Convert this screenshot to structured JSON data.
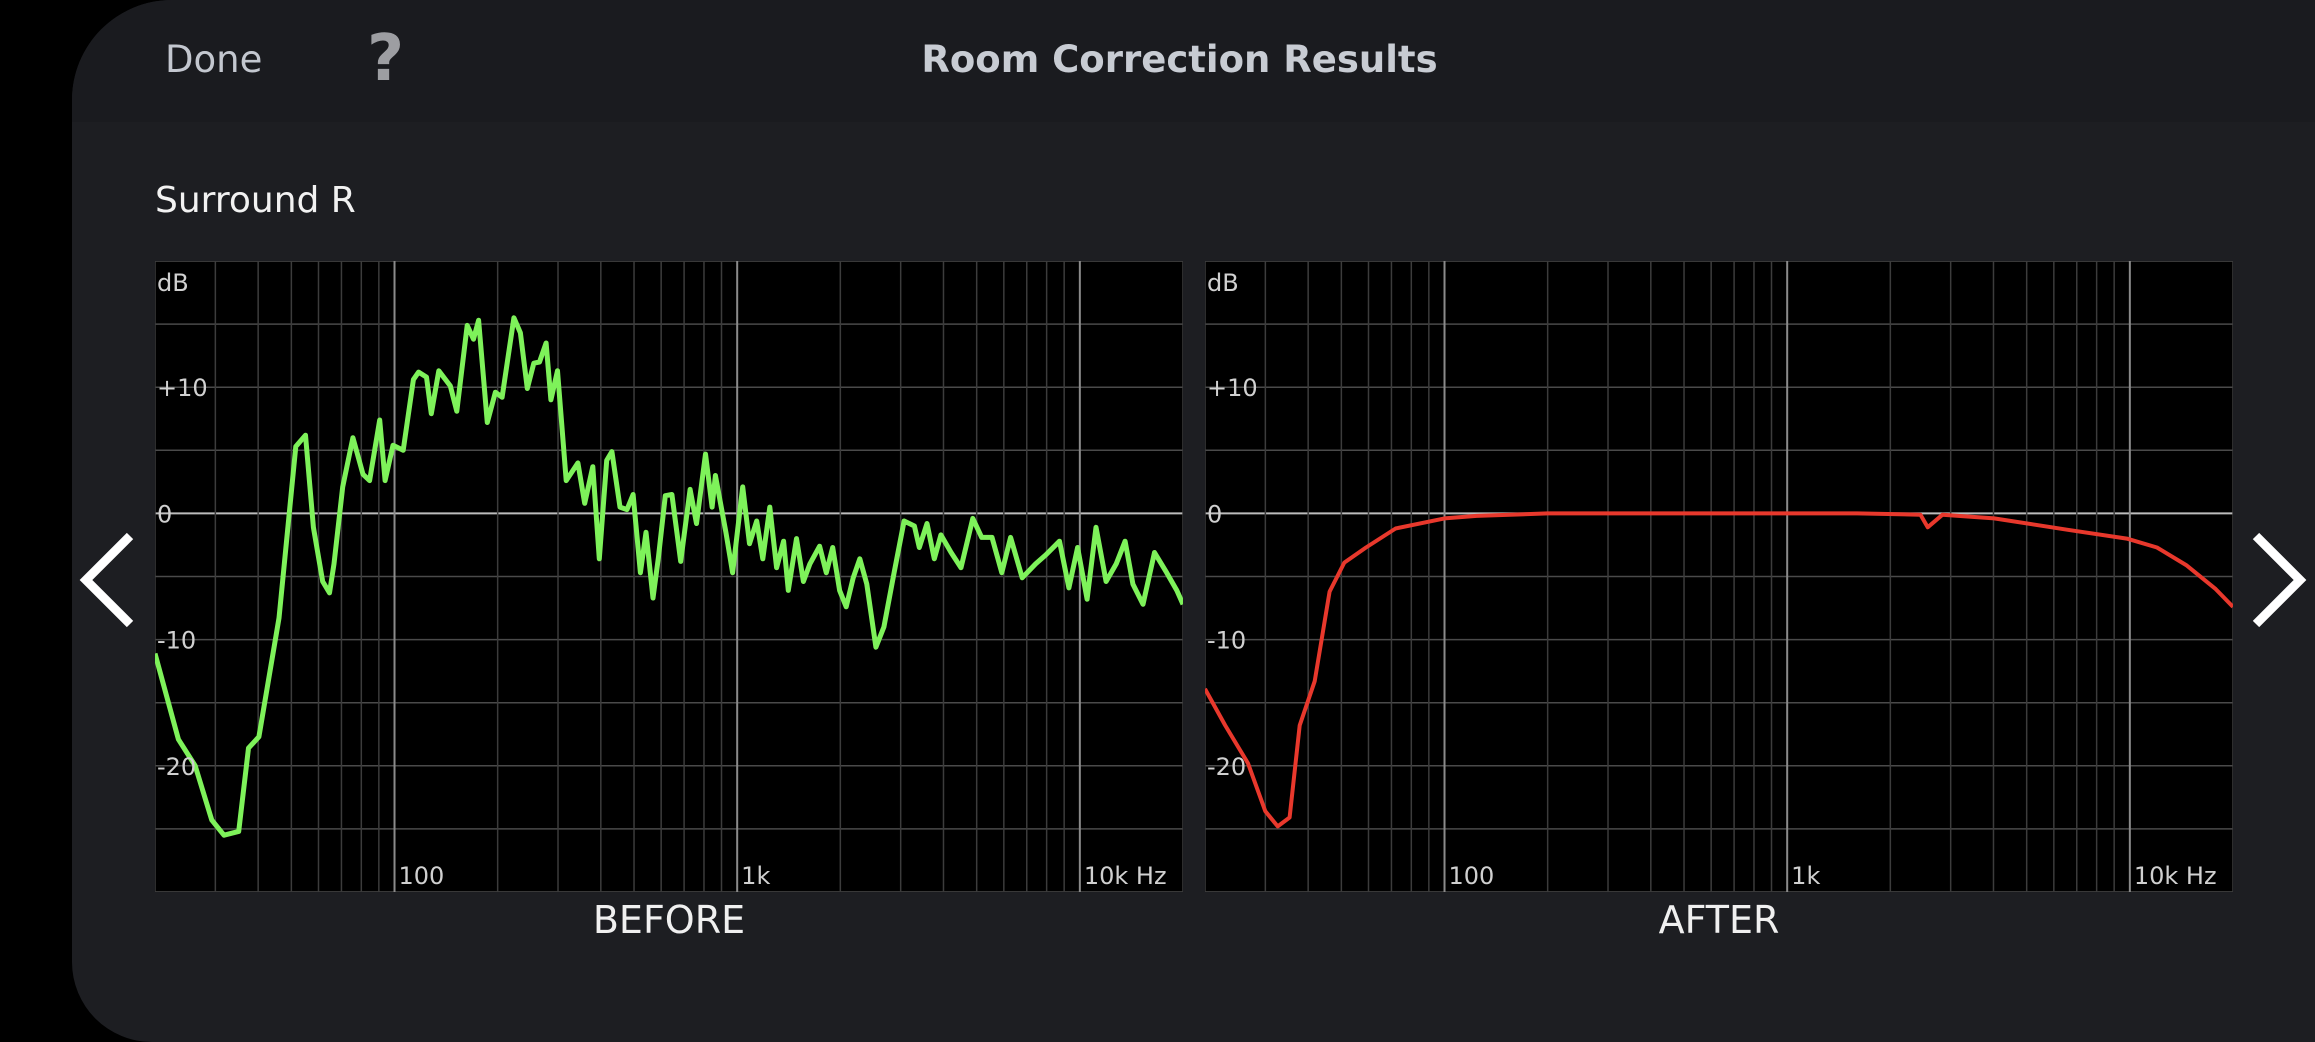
{
  "header": {
    "done_label": "Done",
    "help_label": "?",
    "title": "Room Correction Results"
  },
  "speaker": "Surround R",
  "nav": {
    "prev_icon": "chevron-left-icon",
    "next_icon": "chevron-right-icon"
  },
  "chart_data": [
    {
      "type": "line",
      "label": "BEFORE",
      "color": "#7ef25a",
      "xscale": "log",
      "xlim": [
        20,
        20000
      ],
      "ylim": [
        -30,
        20
      ],
      "grid": true,
      "ylabel": "dB",
      "xlabel_unit": "Hz",
      "yticks": [
        {
          "v": 10,
          "t": "+10"
        },
        {
          "v": 0,
          "t": "0"
        },
        {
          "v": -10,
          "t": "-10"
        },
        {
          "v": -20,
          "t": "-20"
        }
      ],
      "xticks": [
        {
          "v": 100,
          "t": "100"
        },
        {
          "v": 1000,
          "t": "1k"
        },
        {
          "v": 10000,
          "t": "10k Hz"
        }
      ],
      "points": [
        [
          20,
          -11.1
        ],
        [
          23.4,
          -17.9
        ],
        [
          26.2,
          -20
        ],
        [
          29.3,
          -24.3
        ],
        [
          31.8,
          -25.5
        ],
        [
          35.1,
          -25.2
        ],
        [
          37.5,
          -18.6
        ],
        [
          40.2,
          -17.7
        ],
        [
          46,
          -8.3
        ],
        [
          51.5,
          5.3
        ],
        [
          55,
          6.2
        ],
        [
          58,
          -1.1
        ],
        [
          61.7,
          -5.4
        ],
        [
          64.6,
          -6.3
        ],
        [
          66.6,
          -4
        ],
        [
          70.6,
          2.1
        ],
        [
          75.6,
          6
        ],
        [
          80.9,
          3.1
        ],
        [
          84.6,
          2.6
        ],
        [
          90.5,
          7.4
        ],
        [
          93.9,
          2.6
        ],
        [
          99,
          5.4
        ],
        [
          106,
          5
        ],
        [
          113.5,
          10.6
        ],
        [
          117.6,
          11.2
        ],
        [
          124,
          10.8
        ],
        [
          128,
          7.9
        ],
        [
          134.7,
          11.3
        ],
        [
          145.5,
          10.1
        ],
        [
          152,
          8.1
        ],
        [
          163,
          14.9
        ],
        [
          170,
          13.8
        ],
        [
          176,
          15.3
        ],
        [
          186.5,
          7.2
        ],
        [
          197,
          9.6
        ],
        [
          206,
          9.2
        ],
        [
          223,
          15.5
        ],
        [
          233,
          14.3
        ],
        [
          244,
          9.9
        ],
        [
          255,
          11.9
        ],
        [
          265,
          12
        ],
        [
          277,
          13.5
        ],
        [
          286,
          9
        ],
        [
          299,
          11.3
        ],
        [
          317,
          2.6
        ],
        [
          343,
          4
        ],
        [
          359,
          0.8
        ],
        [
          379,
          3.7
        ],
        [
          396,
          -3.6
        ],
        [
          416,
          4.2
        ],
        [
          431,
          4.9
        ],
        [
          455,
          0.5
        ],
        [
          477,
          0.3
        ],
        [
          497,
          1.5
        ],
        [
          522,
          -4.7
        ],
        [
          542,
          -1.5
        ],
        [
          568,
          -6.7
        ],
        [
          589,
          -3.5
        ],
        [
          617,
          1.4
        ],
        [
          645,
          1.5
        ],
        [
          684,
          -3.8
        ],
        [
          729,
          1.9
        ],
        [
          761,
          -0.8
        ],
        [
          808,
          4.7
        ],
        [
          845,
          0.5
        ],
        [
          864,
          3
        ],
        [
          927,
          -1.5
        ],
        [
          970,
          -4.7
        ],
        [
          1038,
          2.1
        ],
        [
          1086,
          -2.4
        ],
        [
          1140,
          -0.6
        ],
        [
          1188,
          -3.6
        ],
        [
          1245,
          0.5
        ],
        [
          1303,
          -4.3
        ],
        [
          1366,
          -2.2
        ],
        [
          1410,
          -6.1
        ],
        [
          1490,
          -2
        ],
        [
          1560,
          -5.4
        ],
        [
          1630,
          -4
        ],
        [
          1740,
          -2.6
        ],
        [
          1820,
          -4.7
        ],
        [
          1900,
          -2.7
        ],
        [
          1990,
          -6.1
        ],
        [
          2080,
          -7.4
        ],
        [
          2180,
          -5.1
        ],
        [
          2280,
          -3.6
        ],
        [
          2390,
          -5.6
        ],
        [
          2540,
          -10.6
        ],
        [
          2680,
          -9
        ],
        [
          2870,
          -4.7
        ],
        [
          3070,
          -0.6
        ],
        [
          3290,
          -1
        ],
        [
          3400,
          -2.7
        ],
        [
          3580,
          -0.8
        ],
        [
          3760,
          -3.6
        ],
        [
          3930,
          -1.7
        ],
        [
          4210,
          -3.1
        ],
        [
          4500,
          -4.3
        ],
        [
          4870,
          -0.4
        ],
        [
          5170,
          -1.9
        ],
        [
          5540,
          -1.9
        ],
        [
          5920,
          -4.7
        ],
        [
          6280,
          -1.9
        ],
        [
          6790,
          -5.1
        ],
        [
          7430,
          -4
        ],
        [
          7950,
          -3.3
        ],
        [
          8720,
          -2.2
        ],
        [
          9290,
          -5.9
        ],
        [
          9850,
          -2.7
        ],
        [
          10500,
          -6.8
        ],
        [
          11150,
          -1.1
        ],
        [
          11930,
          -5.4
        ],
        [
          12770,
          -4
        ],
        [
          13550,
          -2.2
        ],
        [
          14280,
          -5.6
        ],
        [
          15290,
          -7.2
        ],
        [
          16510,
          -3.1
        ],
        [
          17920,
          -4.7
        ],
        [
          19190,
          -6.1
        ],
        [
          20000,
          -7.2
        ]
      ]
    },
    {
      "type": "line",
      "label": "AFTER",
      "color": "#e8382c",
      "xscale": "log",
      "xlim": [
        20,
        20000
      ],
      "ylim": [
        -30,
        20
      ],
      "grid": true,
      "ylabel": "dB",
      "xlabel_unit": "Hz",
      "yticks": [
        {
          "v": 10,
          "t": "+10"
        },
        {
          "v": 0,
          "t": "0"
        },
        {
          "v": -10,
          "t": "-10"
        },
        {
          "v": -20,
          "t": "-20"
        }
      ],
      "xticks": [
        {
          "v": 100,
          "t": "100"
        },
        {
          "v": 1000,
          "t": "1k"
        },
        {
          "v": 10000,
          "t": "10k Hz"
        }
      ],
      "points": [
        [
          20,
          -13.9
        ],
        [
          22.9,
          -16.8
        ],
        [
          26.7,
          -19.8
        ],
        [
          30,
          -23.6
        ],
        [
          32.6,
          -24.8
        ],
        [
          35.3,
          -24.1
        ],
        [
          37.8,
          -16.8
        ],
        [
          41.8,
          -13.3
        ],
        [
          46.2,
          -6.2
        ],
        [
          51,
          -3.9
        ],
        [
          59,
          -2.7
        ],
        [
          72,
          -1.2
        ],
        [
          100,
          -0.4
        ],
        [
          124,
          -0.2
        ],
        [
          200,
          0
        ],
        [
          335,
          0
        ],
        [
          600,
          0
        ],
        [
          1000,
          0
        ],
        [
          1600,
          0
        ],
        [
          2450,
          -0.1
        ],
        [
          2570,
          -1.1
        ],
        [
          2840,
          -0.1
        ],
        [
          4020,
          -0.4
        ],
        [
          6590,
          -1.3
        ],
        [
          9800,
          -2
        ],
        [
          12000,
          -2.7
        ],
        [
          14600,
          -4.1
        ],
        [
          17800,
          -6
        ],
        [
          20000,
          -7.4
        ]
      ]
    }
  ]
}
